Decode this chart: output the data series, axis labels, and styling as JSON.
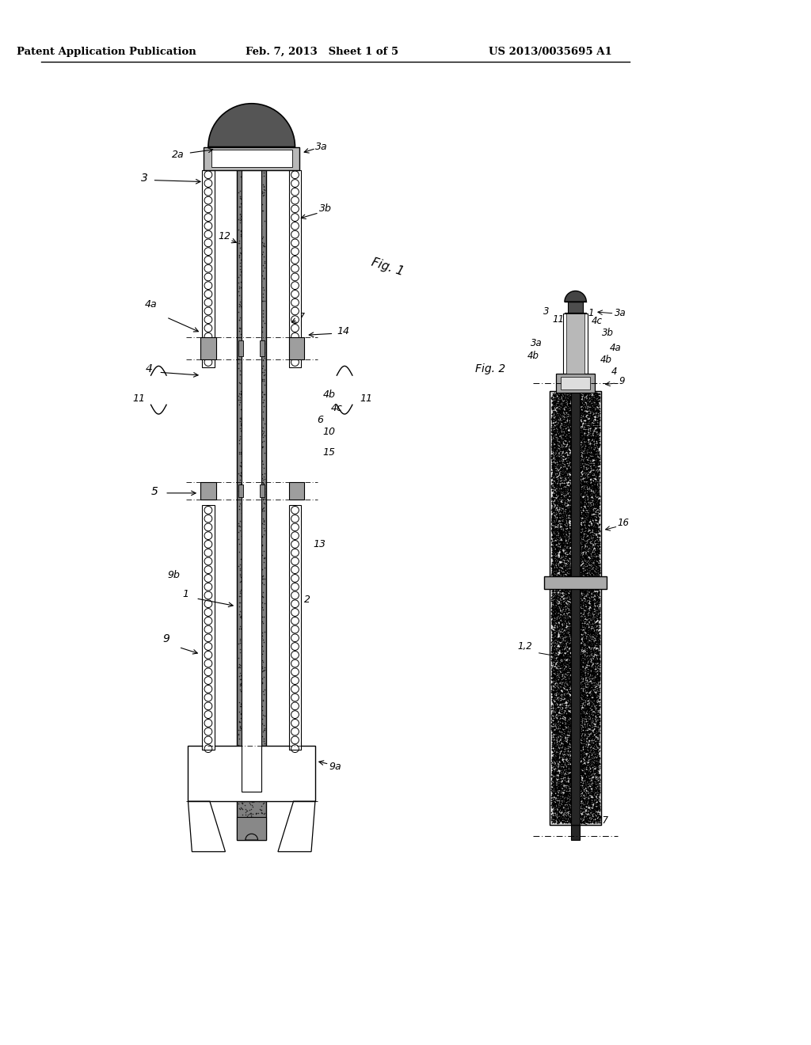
{
  "bg_color": "#ffffff",
  "header_left": "Patent Application Publication",
  "header_mid": "Feb. 7, 2013   Sheet 1 of 5",
  "header_right": "US 2013/0035695 A1"
}
